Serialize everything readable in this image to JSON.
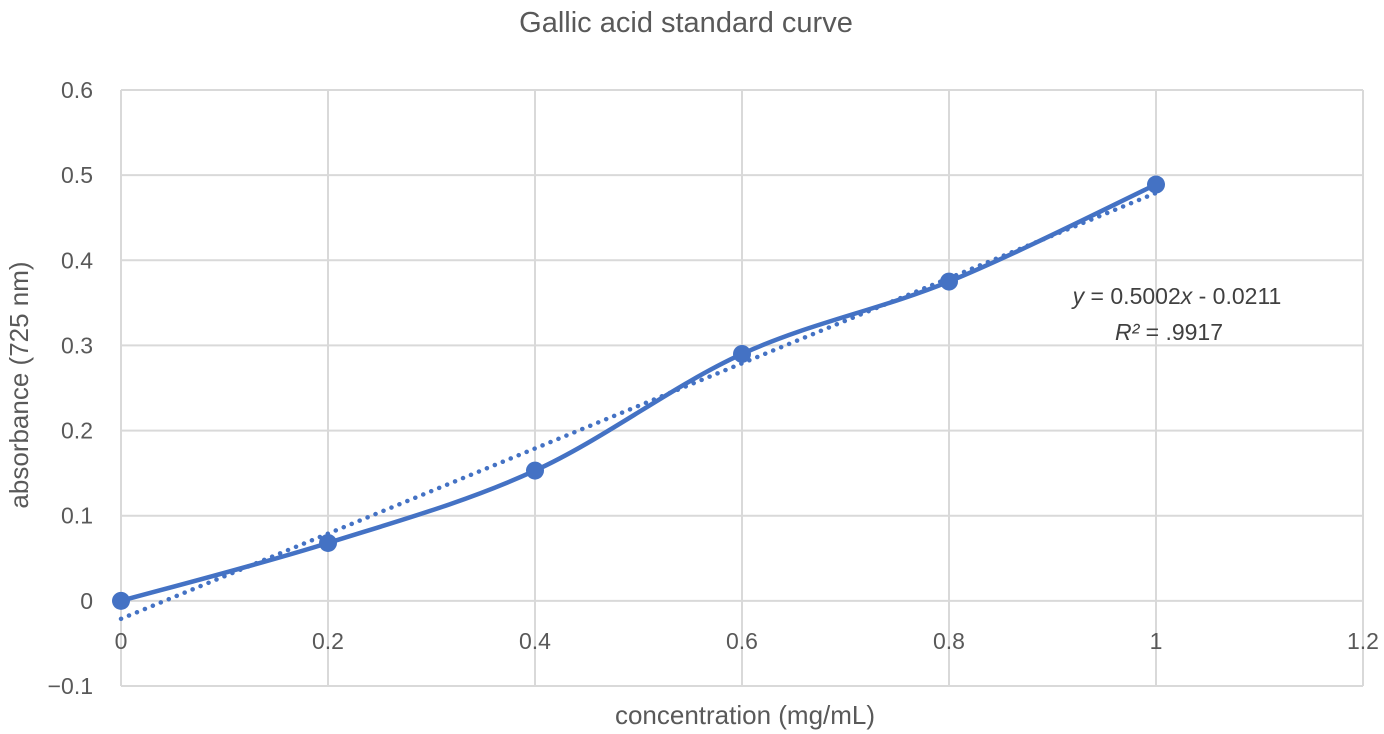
{
  "chart_data": {
    "type": "scatter",
    "title": "Gallic acid standard curve",
    "xlabel": "concentration (mg/mL)",
    "ylabel": "absorbance (725 nm)",
    "xlim": [
      0,
      1.2
    ],
    "ylim": [
      -0.1,
      0.6
    ],
    "x_ticks": [
      "0",
      "0.2",
      "0.4",
      "0.6",
      "0.8",
      "1",
      "1.2"
    ],
    "y_ticks": [
      "−0.1",
      "0",
      "0.1",
      "0.2",
      "0.3",
      "0.4",
      "0.5",
      "0.6"
    ],
    "grid": true,
    "series": [
      {
        "x": [
          0,
          0.2,
          0.4,
          0.6,
          0.8,
          1.0
        ],
        "y": [
          0.0,
          0.068,
          0.153,
          0.29,
          0.375,
          0.489
        ],
        "line": "smooth",
        "marker": "circle",
        "color": "#4472C4"
      }
    ],
    "trendline": {
      "type": "linear",
      "slope": 0.5002,
      "intercept": -0.0211,
      "style": "dotted",
      "color": "#4472C4",
      "equation_label": {
        "y_var": "y",
        "eq_mid": " = 0.5002",
        "x_var": "x",
        "eq_tail": " - 0.0211",
        "r2_var": "R²",
        "r2_tail": " = .9917"
      }
    }
  }
}
